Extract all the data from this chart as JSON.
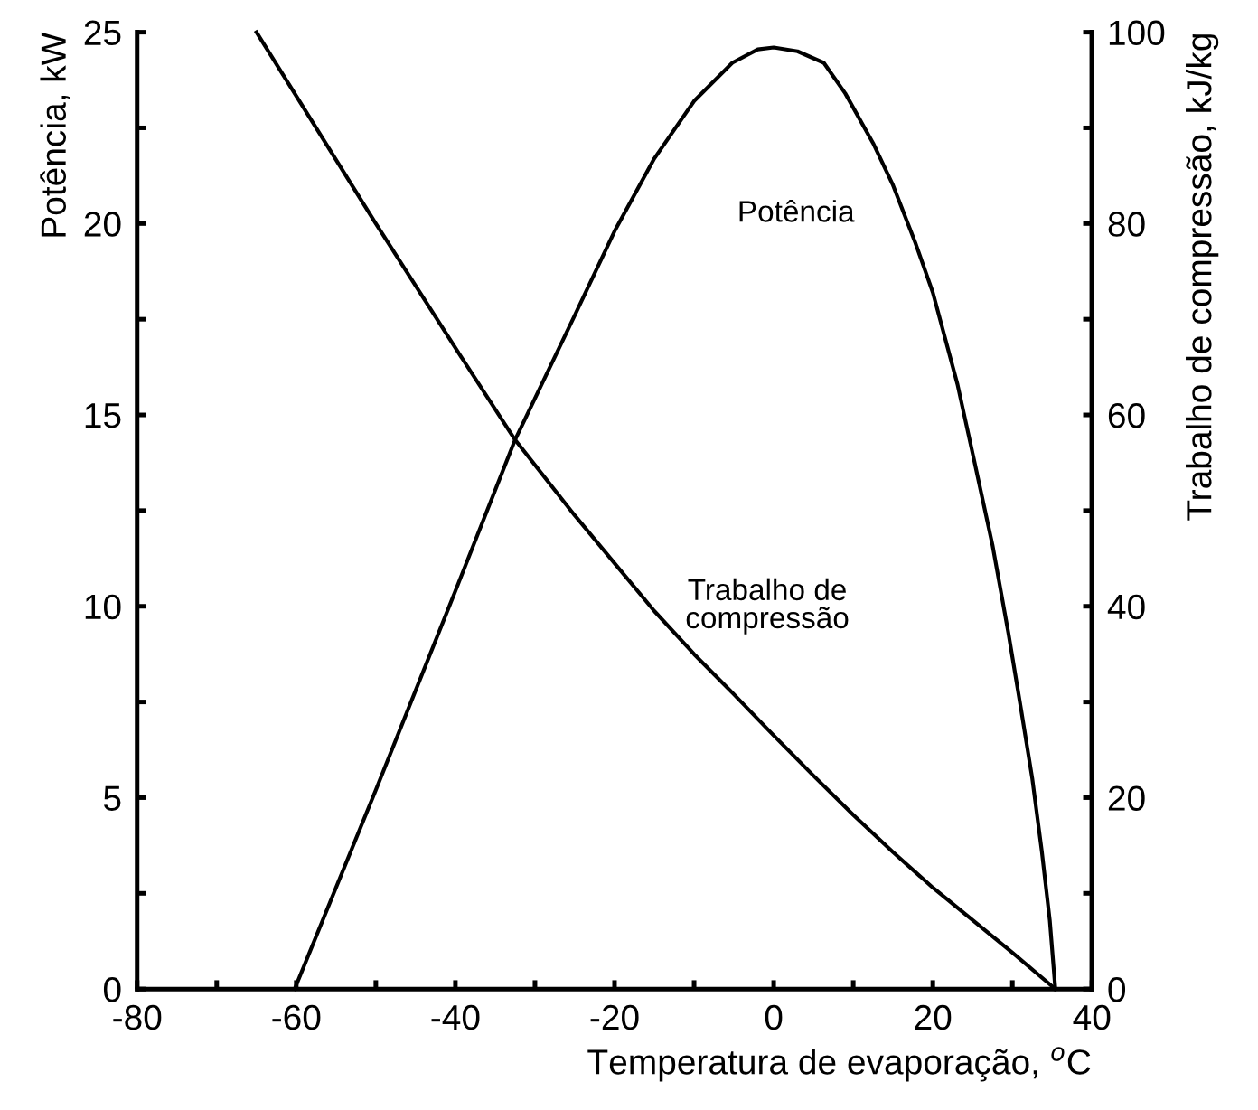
{
  "chart_data": {
    "type": "line",
    "xlabel": "Temperatura de evaporação, $^{o}$C",
    "ylabel": "Potência, kW",
    "y2label": "Trabalho de compressão, kJ/kg",
    "xlim": [
      -80,
      40
    ],
    "ylim": [
      0,
      25
    ],
    "y2lim": [
      0,
      100
    ],
    "xticks": [
      -80,
      {
        "value": -70,
        "label": null
      },
      -60,
      {
        "value": -50,
        "label": null
      },
      -40,
      {
        "value": -30,
        "label": null
      },
      -20,
      {
        "value": -10,
        "label": null
      },
      0,
      {
        "value": 10,
        "label": null
      },
      20,
      {
        "value": 30,
        "label": null
      },
      40
    ],
    "yticks": [
      0,
      {
        "value": 2.5,
        "label": null
      },
      5,
      {
        "value": 7.5,
        "label": null
      },
      10,
      {
        "value": 12.5,
        "label": null
      },
      15,
      {
        "value": 17.5,
        "label": null
      },
      20,
      {
        "value": 22.5,
        "label": null
      },
      25
    ],
    "y2ticks": [
      0,
      {
        "value": 10,
        "label": null
      },
      20,
      {
        "value": 30,
        "label": null
      },
      40,
      {
        "value": 50,
        "label": null
      },
      60,
      {
        "value": 70,
        "label": null
      },
      80,
      {
        "value": 90,
        "label": null
      },
      100
    ],
    "grid": false,
    "legend": false,
    "marker": "none",
    "line_style": "solid",
    "series": [
      {
        "name": "Potência",
        "color": "#000000",
        "x": [
          -60.2,
          -50,
          -40,
          -32.5,
          -25,
          -20,
          -15,
          -10,
          -5.2,
          -2,
          0,
          3,
          6.3,
          9,
          12.5,
          15,
          17.8,
          20,
          23.1,
          25,
          27.5,
          29.5,
          31.1,
          32.5,
          33.7,
          34.7,
          35.4
        ],
        "values": [
          0,
          5.2,
          10.4,
          14.35,
          17.6,
          19.8,
          21.7,
          23.2,
          24.2,
          24.55,
          24.6,
          24.5,
          24.2,
          23.4,
          22.1,
          21,
          19.5,
          18.2,
          15.8,
          14,
          11.6,
          9.3,
          7.3,
          5.5,
          3.6,
          1.8,
          0
        ]
      },
      {
        "name": "Trabalho de\ncompressão",
        "color": "#000000",
        "axis": "y2",
        "x": [
          -65,
          -50,
          -40,
          -32.5,
          -25,
          -20,
          -15,
          -10,
          -5,
          0,
          5,
          10,
          15,
          20,
          25,
          30,
          35.4
        ],
        "values": [
          100,
          80,
          67,
          57.4,
          49.5,
          44.5,
          39.5,
          35,
          30.8,
          26.5,
          22.3,
          18.2,
          14.3,
          10.6,
          7.2,
          3.8,
          0
        ]
      }
    ]
  }
}
